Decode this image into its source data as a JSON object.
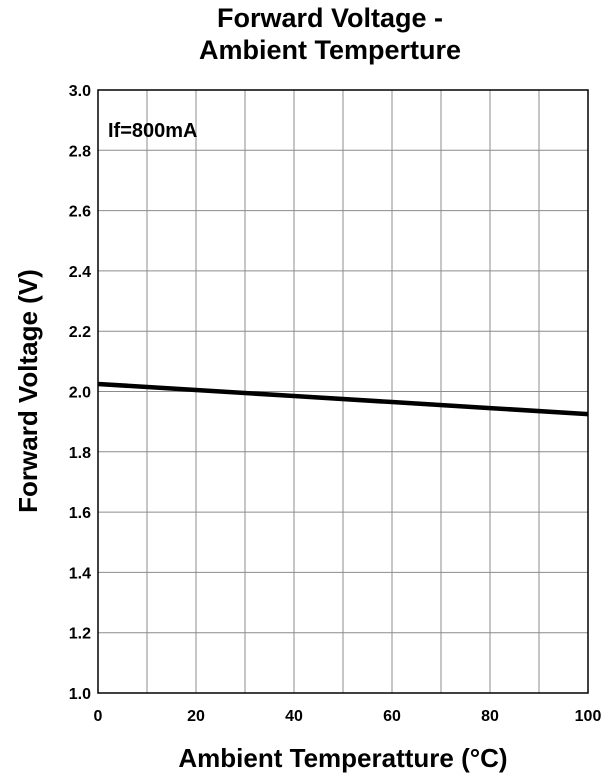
{
  "chart_data": {
    "type": "line",
    "title_lines": [
      "Forward Voltage -",
      "Ambient Temperture"
    ],
    "xlabel": "Ambient Temperatture (°C)",
    "ylabel": "Forward Voltage (V)",
    "xlim": [
      0,
      100
    ],
    "ylim": [
      1.0,
      3.0
    ],
    "x_ticks": [
      0,
      20,
      40,
      60,
      80,
      100
    ],
    "x_tick_labels": [
      "0",
      "20",
      "40",
      "60",
      "80",
      "100"
    ],
    "x_grid_step": 10,
    "y_ticks": [
      1.0,
      1.2,
      1.4,
      1.6,
      1.8,
      2.0,
      2.2,
      2.4,
      2.6,
      2.8,
      3.0
    ],
    "y_tick_labels": [
      "1.0",
      "1.2",
      "1.4",
      "1.6",
      "1.8",
      "2.0",
      "2.2",
      "2.4",
      "2.6",
      "2.8",
      "3.0"
    ],
    "grid": true,
    "annotation": "If=800mA",
    "series": [
      {
        "x": [
          0,
          20,
          40,
          60,
          80,
          100
        ],
        "y": [
          2.025,
          2.005,
          1.985,
          1.965,
          1.945,
          1.925
        ],
        "color": "#000000"
      }
    ]
  }
}
